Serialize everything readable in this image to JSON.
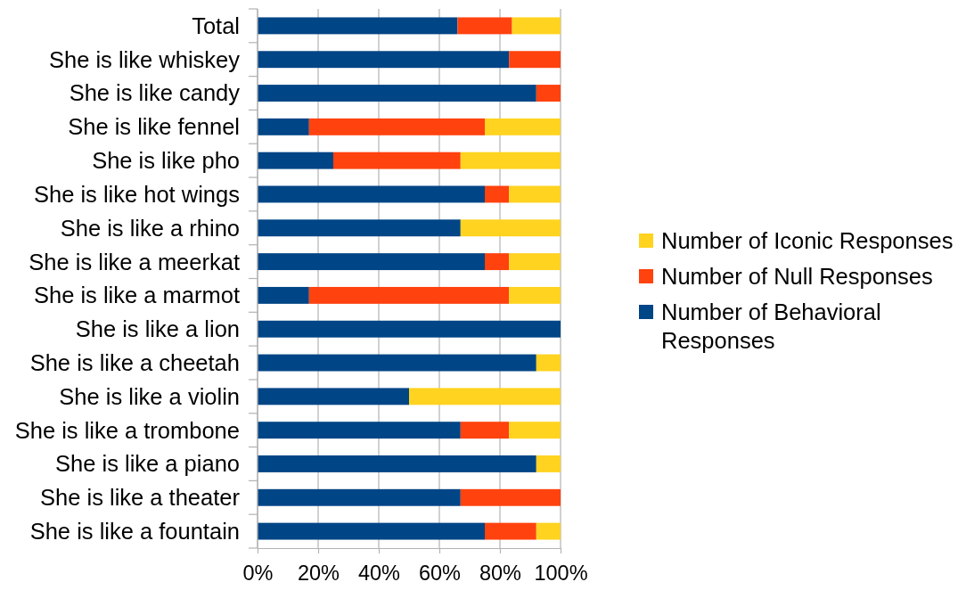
{
  "chart_data": {
    "type": "bar",
    "orientation": "horizontal",
    "stacked": true,
    "categories": [
      "Total",
      "She is like whiskey",
      "She is like candy",
      "She is like fennel",
      "She is like pho",
      "She is like hot wings",
      "She is like a rhino",
      "She is like a meerkat",
      "She is like a marmot",
      "She is like a lion",
      "She is like a cheetah",
      "She is like a violin",
      "She is like a trombone",
      "She is like a piano",
      "She is like a theater",
      "She is like a fountain"
    ],
    "series": [
      {
        "name": "Number of Behavioral Responses",
        "color": "#004586",
        "values": [
          66,
          83,
          92,
          17,
          25,
          75,
          67,
          75,
          17,
          100,
          92,
          50,
          67,
          92,
          67,
          75
        ]
      },
      {
        "name": "Number of Null Responses",
        "color": "#ff420e",
        "values": [
          18,
          17,
          8,
          58,
          42,
          8,
          null,
          8,
          66,
          null,
          null,
          null,
          16,
          null,
          33,
          17
        ]
      },
      {
        "name": "Number of Iconic Responses",
        "color": "#ffd320",
        "values": [
          16,
          null,
          null,
          25,
          33,
          17,
          33,
          17,
          17,
          null,
          8,
          50,
          17,
          8,
          null,
          8
        ]
      }
    ],
    "xlim": [
      0,
      100
    ],
    "xticks": [
      {
        "value": 0,
        "label": "0%"
      },
      {
        "value": 20,
        "label": "20%"
      },
      {
        "value": 40,
        "label": "40%"
      },
      {
        "value": 60,
        "label": "60%"
      },
      {
        "value": 80,
        "label": "80%"
      },
      {
        "value": 100,
        "label": "100%"
      }
    ],
    "grid": "x",
    "legend": "right"
  }
}
